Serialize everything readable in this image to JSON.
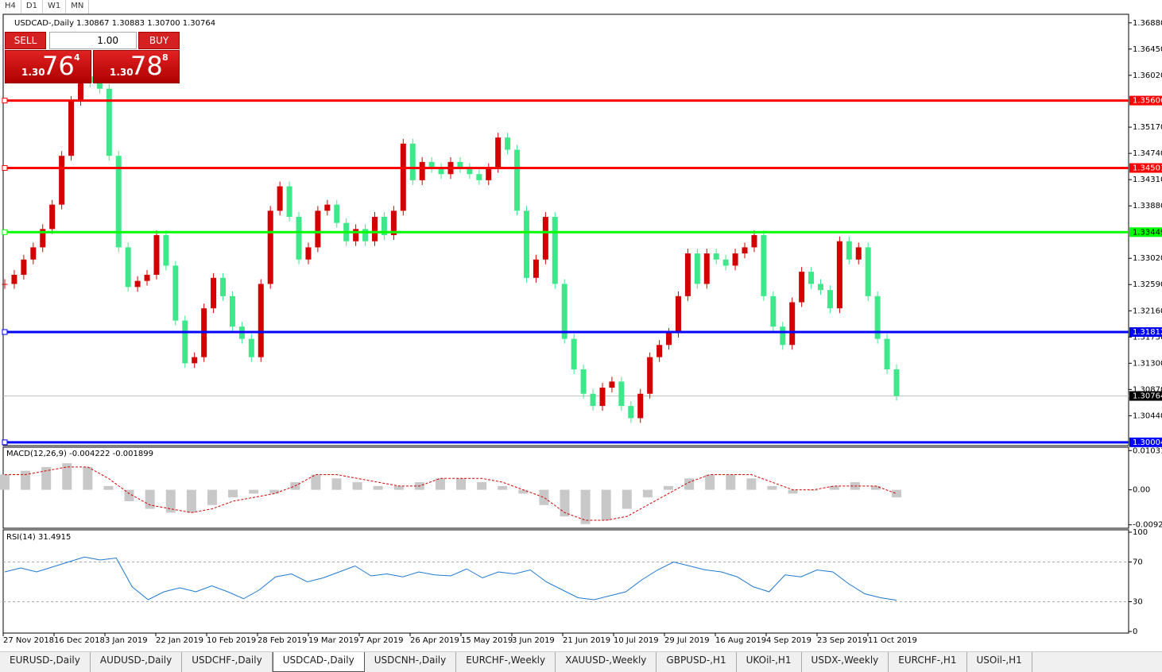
{
  "toolbar": {
    "timeframes": [
      "H4",
      "D1",
      "W1",
      "MN"
    ]
  },
  "chart": {
    "symbol_info": "USDCAD-,Daily  1.30867 1.30883 1.30700 1.30764",
    "up_color": "#d40000",
    "down_color": "#3ee88a",
    "closes": [
      1.326,
      1.3275,
      1.33,
      1.332,
      1.335,
      1.339,
      1.347,
      1.356,
      1.36,
      1.359,
      1.358,
      1.347,
      1.332,
      1.3255,
      1.3265,
      1.3275,
      1.334,
      1.329,
      1.32,
      1.313,
      1.314,
      1.322,
      1.327,
      1.324,
      1.319,
      1.317,
      1.314,
      1.326,
      1.338,
      1.342,
      1.337,
      1.33,
      1.332,
      1.338,
      1.339,
      1.336,
      1.333,
      1.335,
      1.333,
      1.337,
      1.334,
      1.338,
      1.349,
      1.343,
      1.346,
      1.345,
      1.344,
      1.346,
      1.345,
      1.344,
      1.343,
      1.345,
      1.35,
      1.348,
      1.338,
      1.327,
      1.33,
      1.337,
      1.326,
      1.317,
      1.312,
      1.308,
      1.306,
      1.309,
      1.31,
      1.306,
      1.304,
      1.308,
      1.314,
      1.316,
      1.318,
      1.324,
      1.331,
      1.326,
      1.331,
      1.33,
      1.329,
      1.331,
      1.332,
      1.334,
      1.324,
      1.319,
      1.316,
      1.323,
      1.328,
      1.326,
      1.325,
      1.322,
      1.333,
      1.33,
      1.332,
      1.324,
      1.317,
      1.312,
      1.30764
    ],
    "ylim": [
      1.2995,
      1.3702
    ],
    "yticks": [
      {
        "value": 1.3688,
        "label": "1.36880"
      },
      {
        "value": 1.3645,
        "label": "1.36450"
      },
      {
        "value": 1.3602,
        "label": "1.36020"
      },
      {
        "value": 1.3517,
        "label": "1.35170"
      },
      {
        "value": 1.3474,
        "label": "1.34740"
      },
      {
        "value": 1.3431,
        "label": "1.34310"
      },
      {
        "value": 1.3388,
        "label": "1.33880"
      },
      {
        "value": 1.3302,
        "label": "1.33020"
      },
      {
        "value": 1.3259,
        "label": "1.32590"
      },
      {
        "value": 1.3216,
        "label": "1.32160"
      },
      {
        "value": 1.3173,
        "label": "1.31730"
      },
      {
        "value": 1.313,
        "label": "1.31300"
      },
      {
        "value": 1.3087,
        "label": "1.30870"
      },
      {
        "value": 1.3044,
        "label": "1.30440"
      }
    ],
    "levels": [
      {
        "value": 1.35606,
        "color": "#ff0000"
      },
      {
        "value": 1.34501,
        "color": "#ff0000"
      },
      {
        "value": 1.33449,
        "color": "#00ff00"
      },
      {
        "value": 1.31812,
        "color": "#0000ff"
      },
      {
        "value": 1.30004,
        "color": "#0000ff"
      }
    ],
    "current_price": 1.30764,
    "dates": [
      "27 Nov 2018",
      "16 Dec 2018",
      "3 Jan 2019",
      "22 Jan 2019",
      "10 Feb 2019",
      "28 Feb 2019",
      "19 Mar 2019",
      "7 Apr 2019",
      "26 Apr 2019",
      "15 May 2019",
      "3 Jun 2019",
      "21 Jun 2019",
      "10 Jul 2019",
      "29 Jul 2019",
      "16 Aug 2019",
      "4 Sep 2019",
      "23 Sep 2019",
      "11 Oct 2019"
    ]
  },
  "trade_panel": {
    "sell": "SELL",
    "buy": "BUY",
    "lots": "1.00",
    "sell_big": "1.30",
    "sell_pips": "76",
    "sell_frac": "4",
    "buy_big": "1.30",
    "buy_pips": "78",
    "buy_frac": "8"
  },
  "macd": {
    "header": "MACD(12,26,9) -0.004222 -0.001899",
    "ylim": [
      -0.0101,
      0.0112
    ],
    "yticks": [
      0.010311,
      {
        "value": 0,
        "label": "0.00"
      },
      -0.009203
    ],
    "histogram": [
      0.004,
      0.005,
      0.006,
      0.007,
      0.006,
      0.001,
      -0.003,
      -0.005,
      -0.006,
      -0.006,
      -0.004,
      -0.002,
      -0.001,
      -0.001,
      0.002,
      0.004,
      0.003,
      0.002,
      0.001,
      0.001,
      0.002,
      0.003,
      0.003,
      0.002,
      0.001,
      -0.001,
      -0.004,
      -0.007,
      -0.009,
      -0.008,
      -0.005,
      -0.002,
      0.001,
      0.003,
      0.004,
      0.004,
      0.003,
      0.001,
      -0.001,
      0.0,
      0.001,
      0.002,
      0.001,
      -0.002
    ],
    "signal": [
      0.004,
      0.004,
      0.005,
      0.006,
      0.006,
      0.003,
      -0.001,
      -0.004,
      -0.005,
      -0.006,
      -0.005,
      -0.003,
      -0.002,
      -0.001,
      0.001,
      0.004,
      0.004,
      0.003,
      0.002,
      0.001,
      0.001,
      0.003,
      0.003,
      0.003,
      0.002,
      0.0,
      -0.002,
      -0.006,
      -0.008,
      -0.008,
      -0.007,
      -0.004,
      -0.001,
      0.002,
      0.004,
      0.004,
      0.004,
      0.002,
      0.0,
      0.0,
      0.001,
      0.001,
      0.001,
      -0.001
    ]
  },
  "rsi": {
    "header": "RSI(14) 31.4915",
    "ylim": [
      0,
      100
    ],
    "yticks": [
      100,
      70,
      30,
      0
    ],
    "levels": [
      70,
      30
    ],
    "values": [
      60,
      64,
      60,
      65,
      70,
      75,
      72,
      74,
      45,
      32,
      40,
      44,
      40,
      46,
      40,
      33,
      42,
      55,
      58,
      50,
      54,
      60,
      66,
      56,
      58,
      55,
      60,
      57,
      56,
      63,
      54,
      60,
      58,
      62,
      50,
      42,
      34,
      32,
      36,
      40,
      52,
      62,
      70,
      66,
      62,
      60,
      55,
      45,
      40,
      57,
      55,
      62,
      60,
      48,
      38,
      34,
      31.4915
    ]
  },
  "tabs": [
    "EURUSD-,Daily",
    "AUDUSD-,Daily",
    "USDCHF-,Daily",
    "USDCAD-,Daily",
    "USDCNH-,Daily",
    "EURCHF-,Weekly",
    "XAUUSD-,Weekly",
    "GBPUSD-,H1",
    "UKOil-,H1",
    "USDX-,Weekly",
    "EURCHF-,H1",
    "USOil-,H1"
  ],
  "active_tab": 3
}
